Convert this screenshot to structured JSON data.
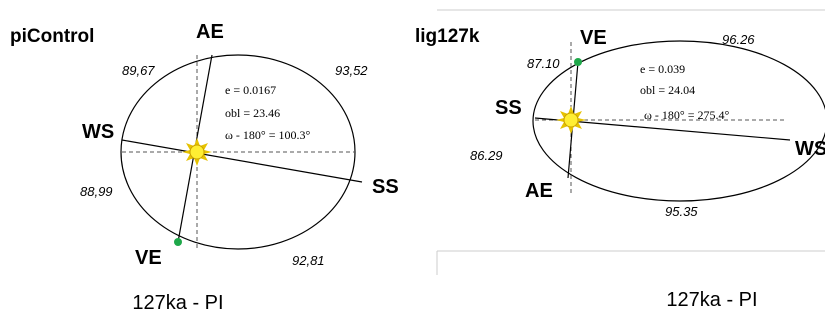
{
  "left": {
    "title": "piControl",
    "AE": "AE",
    "WS": "WS",
    "SS": "SS",
    "VE": "VE",
    "q1": "89,67",
    "q2": "93,52",
    "q3": "88,99",
    "q4": "92,81",
    "eq1": "e = 0.0167",
    "eq2": "obl = 23.46",
    "eq3": "ω - 180° = 100.3°",
    "caption": "127ka - PI"
  },
  "right": {
    "title": "lig127k",
    "VE": "VE",
    "SS": "SS",
    "WS": "WS",
    "AE": "AE",
    "q1": "87.10",
    "q2": "96.26",
    "q3": "86.29",
    "q4": "95.35",
    "eq1": "e = 0.039",
    "eq2": "obl = 24.04",
    "eq3": "ω - 180° = 275.4°",
    "caption": "127ka - PI"
  }
}
